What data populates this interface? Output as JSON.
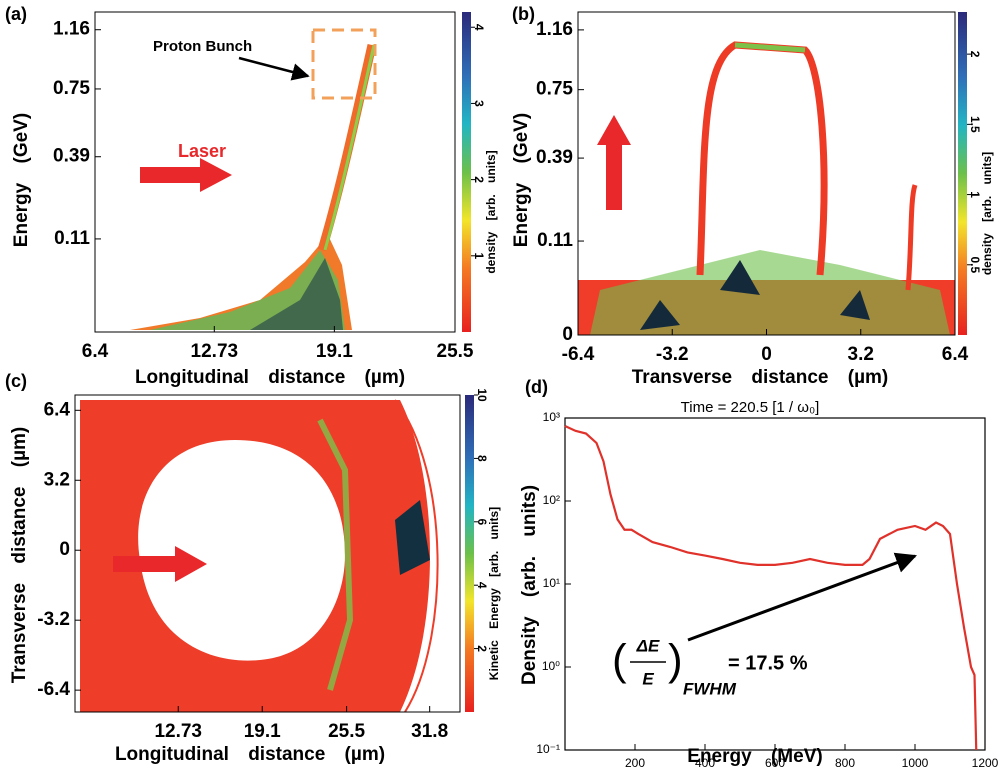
{
  "chart_data": [
    {
      "type": "density",
      "panel_label": "(a)",
      "xlabel": "Longitudinal distance (µm)",
      "ylabel": "Energy (GeV)",
      "xlim": [
        6.4,
        25.5
      ],
      "xticks": [
        6.4,
        12.73,
        19.1,
        25.5
      ],
      "ylim": [
        0,
        1.3
      ],
      "yscale": "sqrt",
      "yticks": [
        0.11,
        0.39,
        0.75,
        1.16
      ],
      "colorbar": {
        "label": "density [arb. units]",
        "lim": [
          0,
          4.2
        ],
        "ticks": [
          1,
          2,
          3,
          4
        ]
      },
      "annotations": [
        "Proton Bunch",
        "Laser"
      ]
    },
    {
      "type": "density",
      "panel_label": "(b)",
      "xlabel": "Transverse distance (µm)",
      "ylabel": "Energy (GeV)",
      "xlim": [
        -6.4,
        6.4
      ],
      "xticks": [
        -6.4,
        -3.2,
        0,
        3.2,
        6.4
      ],
      "ylim": [
        0,
        1.3
      ],
      "yscale": "sqrt",
      "yticks": [
        0,
        0.11,
        0.39,
        0.75,
        1.16
      ],
      "colorbar": {
        "label": "density [arb. units]",
        "lim": [
          0,
          2.3
        ],
        "ticks": [
          0.5,
          1,
          1.5,
          2
        ]
      }
    },
    {
      "type": "density",
      "panel_label": "(c)",
      "xlabel": "Longitudinal distance (µm)",
      "ylabel": "Transverse distance (µm)",
      "xlim": [
        4.9,
        34.1
      ],
      "xticks": [
        12.73,
        19.1,
        25.5,
        31.8
      ],
      "ylim": [
        -7.4,
        7.1
      ],
      "yscale": "linear",
      "yticks": [
        -6.4,
        -3.2,
        0,
        3.2,
        6.4
      ],
      "colorbar": {
        "label": "Kinetic Energy [arb. units]",
        "lim": [
          0,
          10
        ],
        "ticks": [
          2,
          4,
          6,
          8,
          10
        ]
      }
    },
    {
      "type": "line",
      "panel_label": "(d)",
      "title": "Time = 220.5 [1 / ω₀]",
      "xlabel": "Energy (MeV)",
      "ylabel": "Density (arb. units)",
      "x": [
        0,
        30,
        60,
        90,
        110,
        130,
        150,
        170,
        190,
        210,
        250,
        300,
        350,
        400,
        450,
        500,
        550,
        600,
        650,
        700,
        750,
        800,
        850,
        870,
        900,
        950,
        1000,
        1030,
        1060,
        1080,
        1100,
        1120,
        1140,
        1160,
        1170,
        1175
      ],
      "values": [
        800,
        700,
        650,
        500,
        300,
        120,
        60,
        45,
        45,
        40,
        32,
        28,
        24,
        22,
        20,
        18,
        17,
        17,
        18,
        20,
        18,
        17,
        17,
        20,
        35,
        45,
        50,
        45,
        55,
        50,
        40,
        10,
        3,
        1,
        0.8,
        0.1
      ],
      "color": "#e0312a",
      "xlim": [
        0,
        1200
      ],
      "xticks": [
        200,
        400,
        600,
        800,
        1000,
        1200
      ],
      "ylim": [
        0.1,
        1000
      ],
      "yscale": "log",
      "yticks": [
        {
          "value": 0.1,
          "label": "10⁻¹"
        },
        {
          "value": 1,
          "label": "10⁰"
        },
        {
          "value": 10,
          "label": "10¹"
        },
        {
          "value": 100,
          "label": "10²"
        },
        {
          "value": 1000,
          "label": "10³"
        }
      ],
      "annotation": {
        "numerator": "ΔE",
        "denominator": "E",
        "subscript": "FWHM",
        "text": "= 17.5 %"
      }
    }
  ]
}
